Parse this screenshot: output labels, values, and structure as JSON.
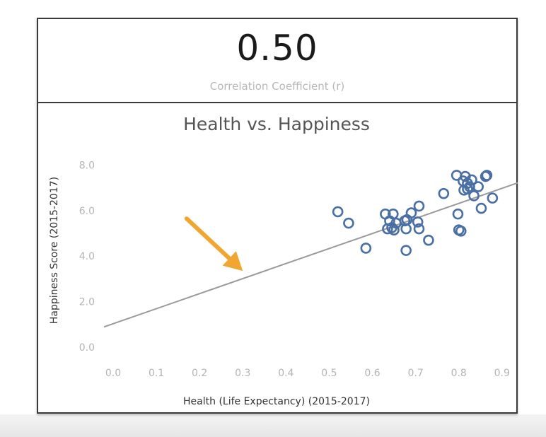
{
  "kpi": {
    "value": "0.50",
    "label": "Correlation Coefficient (r)"
  },
  "colors": {
    "point": "#4a6fa5",
    "trend": "#9a9a9a",
    "arrow": "#f0a630"
  },
  "chart_data": {
    "type": "scatter",
    "title": "Health vs. Happiness",
    "xlabel": "Health (Life Expectancy) (2015-2017)",
    "ylabel": "Happiness Score (2015-2017)",
    "xlim": [
      0.0,
      0.92
    ],
    "ylim": [
      0.0,
      8.2
    ],
    "xticks": [
      "0.0",
      "0.1",
      "0.2",
      "0.3",
      "0.4",
      "0.5",
      "0.6",
      "0.7",
      "0.8",
      "0.9"
    ],
    "yticks": [
      "0.0",
      "2.0",
      "4.0",
      "6.0",
      "8.0"
    ],
    "grid": false,
    "marker": "hollow-circle",
    "trendline": {
      "x": [
        0.0,
        0.92
      ],
      "y": [
        1.03,
        7.11
      ]
    },
    "annotation": {
      "type": "arrow",
      "from": [
        0.17,
        5.65
      ],
      "to": [
        0.3,
        3.35
      ]
    },
    "points": [
      {
        "x": 0.52,
        "y": 5.95
      },
      {
        "x": 0.545,
        "y": 5.45
      },
      {
        "x": 0.585,
        "y": 4.35
      },
      {
        "x": 0.63,
        "y": 5.85
      },
      {
        "x": 0.635,
        "y": 5.2
      },
      {
        "x": 0.64,
        "y": 5.55
      },
      {
        "x": 0.645,
        "y": 5.25
      },
      {
        "x": 0.648,
        "y": 5.85
      },
      {
        "x": 0.65,
        "y": 5.15
      },
      {
        "x": 0.655,
        "y": 5.45
      },
      {
        "x": 0.675,
        "y": 5.55
      },
      {
        "x": 0.678,
        "y": 5.2
      },
      {
        "x": 0.68,
        "y": 5.6
      },
      {
        "x": 0.678,
        "y": 4.25
      },
      {
        "x": 0.69,
        "y": 5.9
      },
      {
        "x": 0.705,
        "y": 5.5
      },
      {
        "x": 0.708,
        "y": 5.2
      },
      {
        "x": 0.708,
        "y": 6.2
      },
      {
        "x": 0.73,
        "y": 4.7
      },
      {
        "x": 0.765,
        "y": 6.75
      },
      {
        "x": 0.795,
        "y": 7.55
      },
      {
        "x": 0.798,
        "y": 5.85
      },
      {
        "x": 0.8,
        "y": 5.15
      },
      {
        "x": 0.805,
        "y": 5.1
      },
      {
        "x": 0.81,
        "y": 7.3
      },
      {
        "x": 0.812,
        "y": 6.9
      },
      {
        "x": 0.815,
        "y": 7.5
      },
      {
        "x": 0.82,
        "y": 7.2
      },
      {
        "x": 0.82,
        "y": 6.95
      },
      {
        "x": 0.825,
        "y": 7.05
      },
      {
        "x": 0.83,
        "y": 7.35
      },
      {
        "x": 0.835,
        "y": 6.65
      },
      {
        "x": 0.845,
        "y": 7.05
      },
      {
        "x": 0.852,
        "y": 6.1
      },
      {
        "x": 0.862,
        "y": 7.5
      },
      {
        "x": 0.865,
        "y": 7.55
      },
      {
        "x": 0.878,
        "y": 6.55
      }
    ]
  }
}
